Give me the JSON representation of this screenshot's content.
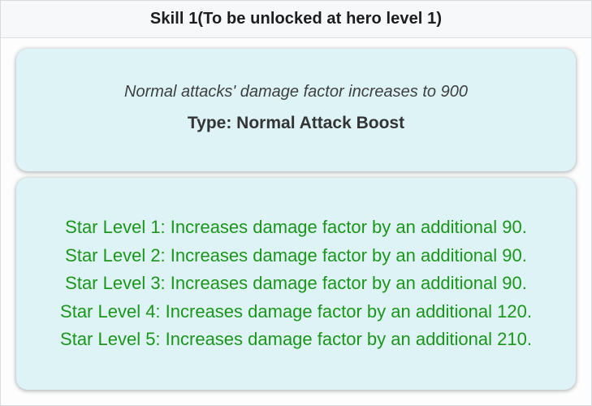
{
  "header": {
    "title": "Skill 1(To be unlocked at hero level 1)"
  },
  "summary_card": {
    "description": "Normal attacks' damage factor increases to 900",
    "type_text": "Type: Normal Attack Boost"
  },
  "star_levels_card": {
    "lines": [
      "Star Level 1: Increases damage factor by an additional 90.",
      "Star Level 2: Increases damage factor by an additional 90.",
      "Star Level 3: Increases damage factor by an additional 90.",
      "Star Level 4: Increases damage factor by an additional 120.",
      "Star Level 5: Increases damage factor by an additional 210."
    ]
  },
  "colors": {
    "card_background": "#ddf3f5",
    "star_text_green": "#1b961b",
    "header_background": "#f7f8f9",
    "title_text": "#1d1d1f",
    "body_text": "#3d3f40"
  }
}
